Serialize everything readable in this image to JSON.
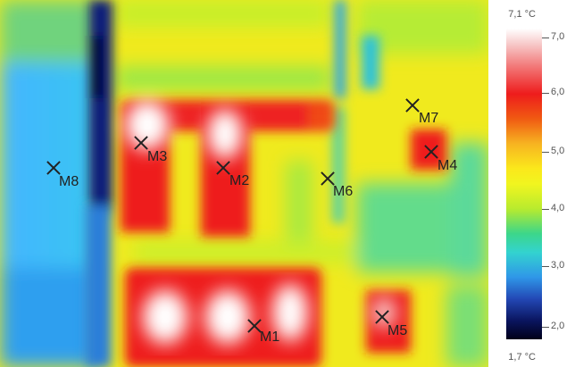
{
  "scale": {
    "max_label": "7,1 °C",
    "min_label": "1,7 °C",
    "ticks": [
      "7,0",
      "6,0",
      "5,0",
      "4,0",
      "3,0",
      "2,0"
    ],
    "colors": [
      "#ffffff",
      "#ee1c1c",
      "#fbe81b",
      "#3cd68a",
      "#2f97e8",
      "#0a155f"
    ]
  },
  "markers": [
    {
      "label": "M1"
    },
    {
      "label": "M2"
    },
    {
      "label": "M3"
    },
    {
      "label": "M4"
    },
    {
      "label": "M5"
    },
    {
      "label": "M6"
    },
    {
      "label": "M7"
    },
    {
      "label": "M8"
    }
  ]
}
